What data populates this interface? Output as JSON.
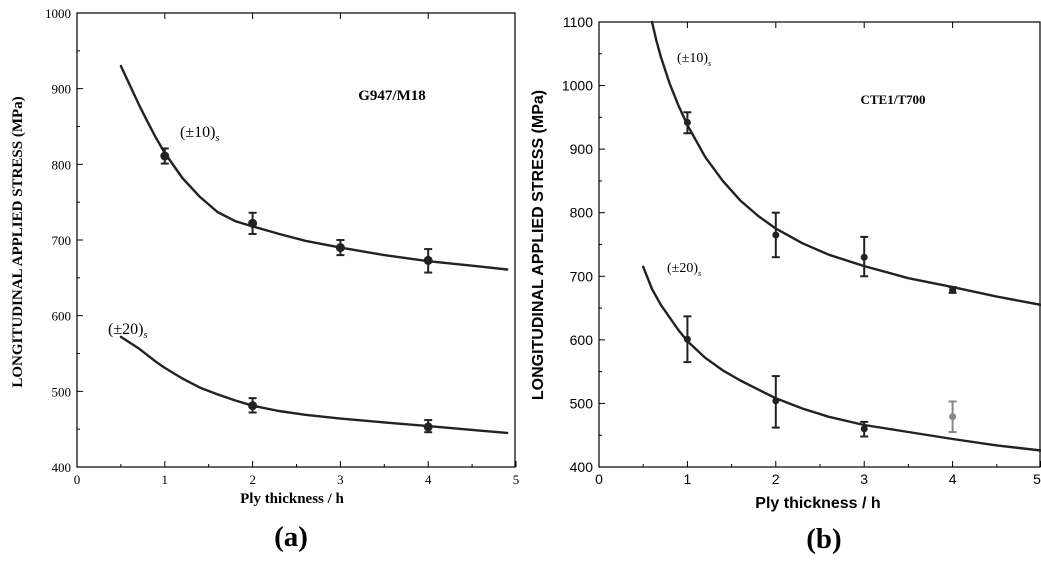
{
  "figure": {
    "panel_a_caption": "(a)",
    "panel_b_caption": "(b)"
  },
  "chart_data": [
    {
      "type": "scatter",
      "panel": "(a)",
      "title": "G947/M18",
      "xlabel": "Ply thickness / h",
      "ylabel": "LONGITUDINAL APPLIED STRESS (MPa)",
      "xlim": [
        0,
        5
      ],
      "ylim": [
        400,
        1000
      ],
      "xticks": [
        0,
        1,
        2,
        3,
        4,
        5
      ],
      "yticks": [
        400,
        500,
        600,
        700,
        800,
        900,
        1000
      ],
      "grid": false,
      "series": [
        {
          "name": "(±10)s",
          "label_main": "(±10)",
          "label_sub": "s",
          "points": [
            {
              "x": 1,
              "y": 811,
              "err_low": 801,
              "err_high": 821
            },
            {
              "x": 2,
              "y": 722,
              "err_low": 708,
              "err_high": 736
            },
            {
              "x": 3,
              "y": 690,
              "err_low": 680,
              "err_high": 700
            },
            {
              "x": 4,
              "y": 673,
              "err_low": 657,
              "err_high": 688
            }
          ],
          "fit_curve": {
            "x": [
              0.5,
              0.6,
              0.7,
              0.8,
              0.9,
              1.0,
              1.2,
              1.4,
              1.6,
              1.8,
              2.0,
              2.3,
              2.6,
              3.0,
              3.5,
              4.0,
              4.5,
              4.9
            ],
            "y": [
              930,
              905,
              880,
              857,
              835,
              815,
              782,
              757,
              737,
              725,
              718,
              708,
              699,
              690,
              680,
              672,
              666,
              661
            ]
          }
        },
        {
          "name": "(±20)s",
          "label_main": "(±20)",
          "label_sub": "s",
          "points": [
            {
              "x": 2,
              "y": 481,
              "err_low": 472,
              "err_high": 491
            },
            {
              "x": 4,
              "y": 453,
              "err_low": 446,
              "err_high": 462
            }
          ],
          "fit_curve": {
            "x": [
              0.5,
              0.7,
              0.9,
              1.0,
              1.2,
              1.4,
              1.6,
              1.8,
              2.0,
              2.3,
              2.6,
              3.0,
              3.5,
              4.0,
              4.5,
              4.9
            ],
            "y": [
              572,
              557,
              539,
              531,
              517,
              505,
              496,
              488,
              481,
              474,
              469,
              464,
              459,
              454,
              449,
              445
            ]
          }
        }
      ]
    },
    {
      "type": "scatter",
      "panel": "(b)",
      "title": "CTE1/T700",
      "xlabel": "Ply thickness / h",
      "ylabel": "LONGITUDINAL APPLIED STRESS (MPa)",
      "xlim": [
        0,
        5
      ],
      "ylim": [
        400,
        1100
      ],
      "xticks": [
        0,
        1,
        2,
        3,
        4,
        5
      ],
      "yticks": [
        400,
        500,
        600,
        700,
        800,
        900,
        1000,
        1100
      ],
      "grid": false,
      "series": [
        {
          "name": "(±10)s",
          "label_main": "(±10)",
          "label_sub": "s",
          "points": [
            {
              "x": 1,
              "y": 942,
              "err_low": 925,
              "err_high": 958
            },
            {
              "x": 2,
              "y": 765,
              "err_low": 730,
              "err_high": 800
            },
            {
              "x": 3,
              "y": 730,
              "err_low": 700,
              "err_high": 762
            },
            {
              "x": 4,
              "y": 678,
              "err_low": 674,
              "err_high": 683
            }
          ],
          "fit_curve": {
            "x": [
              0.6,
              0.65,
              0.7,
              0.8,
              0.9,
              1.0,
              1.2,
              1.4,
              1.6,
              1.8,
              2.0,
              2.3,
              2.6,
              3.0,
              3.5,
              4.0,
              4.5,
              5.0
            ],
            "y": [
              1100,
              1070,
              1045,
              1003,
              968,
              938,
              888,
              850,
              819,
              795,
              775,
              752,
              734,
              716,
              697,
              683,
              668,
              655
            ]
          }
        },
        {
          "name": "(±20)s",
          "label_main": "(±20)",
          "label_sub": "s",
          "points": [
            {
              "x": 1,
              "y": 601,
              "err_low": 565,
              "err_high": 637
            },
            {
              "x": 2,
              "y": 504,
              "err_low": 462,
              "err_high": 543
            },
            {
              "x": 3,
              "y": 460,
              "err_low": 448,
              "err_high": 471
            },
            {
              "x": 4,
              "y": 479,
              "err_low": 455,
              "err_high": 503,
              "color": "#888888"
            }
          ],
          "fit_curve": {
            "x": [
              0.5,
              0.6,
              0.7,
              0.8,
              0.9,
              1.0,
              1.2,
              1.4,
              1.6,
              1.8,
              2.0,
              2.3,
              2.6,
              3.0,
              3.5,
              4.0,
              4.5,
              5.0
            ],
            "y": [
              715,
              680,
              655,
              635,
              615,
              598,
              572,
              552,
              536,
              522,
              508,
              492,
              479,
              466,
              455,
              444,
              434,
              426
            ]
          }
        }
      ]
    }
  ]
}
